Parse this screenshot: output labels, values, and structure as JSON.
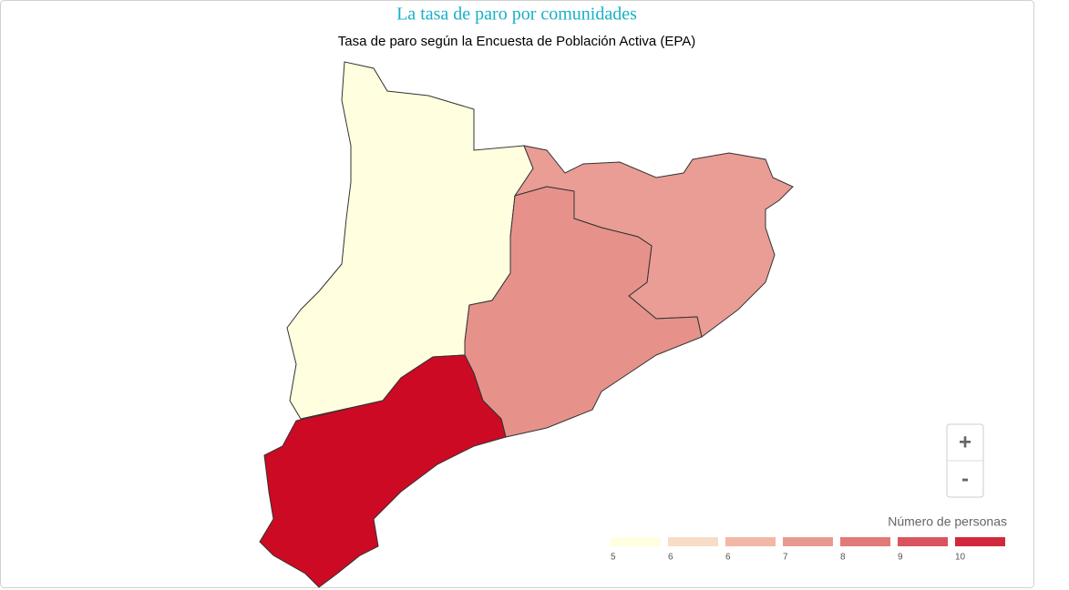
{
  "chart_data": {
    "type": "choropleth",
    "title": "La tasa de paro por comunidades",
    "subtitle": "Tasa de paro según la Encuesta de Población Activa (EPA)",
    "values": [
      5,
      7,
      7,
      10
    ],
    "colors": [
      "#ffffe0",
      "#e99d95",
      "#e6928a",
      "#cc0a24"
    ],
    "legend": {
      "title": "Número de personas",
      "labels": [
        5,
        6,
        6,
        7,
        8,
        9,
        10
      ],
      "colors": [
        "#ffffe0",
        "#f8dcc8",
        "#f1b8a6",
        "#e99a90",
        "#e27a78",
        "#da5460",
        "#d2283c"
      ]
    },
    "zoom_controls": [
      "+",
      "-"
    ]
  }
}
